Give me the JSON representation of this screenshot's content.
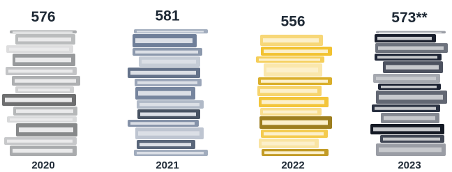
{
  "chart_data": {
    "type": "pictograph",
    "categories": [
      "2020",
      "2021",
      "2022",
      "2023"
    ],
    "values": [
      576,
      581,
      556,
      573
    ],
    "value_labels": [
      "576",
      "581",
      "556",
      "573**"
    ],
    "colors": [
      "#a9abad",
      "#6f7f99",
      "#f2c230",
      "#1f2637"
    ]
  }
}
